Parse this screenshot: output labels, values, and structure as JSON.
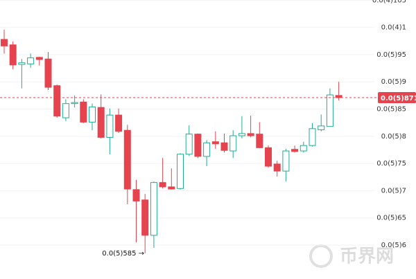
{
  "chart_data": {
    "type": "candlestick",
    "up_color": "#22ab94",
    "down_color": "#e5434e",
    "grid": true,
    "ylim": [
      5.377e-06,
      1.0504e-05
    ],
    "yticks": [
      {
        "value": 6e-06,
        "label": "0.0(5)6"
      },
      {
        "value": 6.5e-06,
        "label": "0.0(5)65"
      },
      {
        "value": 7e-06,
        "label": "0.0(5)7"
      },
      {
        "value": 7.5e-06,
        "label": "0.0(5)75"
      },
      {
        "value": 8e-06,
        "label": "0.0(5)8"
      },
      {
        "value": 8.5e-06,
        "label": "0.0(5)85"
      },
      {
        "value": 9e-06,
        "label": "0.0(5)9"
      },
      {
        "value": 9.5e-06,
        "label": "0.0(5)95"
      },
      {
        "value": 1e-05,
        "label": "0.0(4)1"
      },
      {
        "value": 1.05e-05,
        "label": "0.0(4)105"
      }
    ],
    "open": [
      9.78e-06,
      9.68e-06,
      9.32e-06,
      9.33e-06,
      9.45e-06,
      9.42e-06,
      8.93e-06,
      8.34e-06,
      8.6e-06,
      8.63e-06,
      8.26e-06,
      8.53e-06,
      7.98e-06,
      8.39e-06,
      8.11e-06,
      7.02e-06,
      6.83e-06,
      6.18e-06,
      7.15e-06,
      7.07e-06,
      7.04e-06,
      7.67e-06,
      8.04e-06,
      7.63e-06,
      7.9e-06,
      7.88e-06,
      7.73e-06,
      8.01e-06,
      8.05e-06,
      8.04e-06,
      7.79e-06,
      7.49e-06,
      7.36e-06,
      7.76e-06,
      7.73e-06,
      7.83e-06,
      8.12e-06,
      8.18e-06,
      8.75e-06
    ],
    "high": [
      9.96e-06,
      9.74e-06,
      9.42e-06,
      9.52e-06,
      9.46e-06,
      9.55e-06,
      8.95e-06,
      8.68e-06,
      8.75e-06,
      8.68e-06,
      8.6e-06,
      8.77e-06,
      8.51e-06,
      8.51e-06,
      8.21e-06,
      7.2e-06,
      6.94e-06,
      7.17e-06,
      7.6e-06,
      7.41e-06,
      7.69e-06,
      8.2e-06,
      8.05e-06,
      7.93e-06,
      8.09e-06,
      8.05e-06,
      8.11e-06,
      8.37e-06,
      8.38e-06,
      8.26e-06,
      7.83e-06,
      7.55e-06,
      7.77e-06,
      7.83e-06,
      7.9e-06,
      8.24e-06,
      8.4e-06,
      8.88e-06,
      9e-06
    ],
    "low": [
      9.52e-06,
      9.23e-06,
      8.88e-06,
      9.26e-06,
      9.3e-06,
      8.85e-06,
      8.34e-06,
      8.28e-06,
      8.53e-06,
      8.24e-06,
      8.11e-06,
      7.96e-06,
      7.67e-06,
      8.06e-06,
      6.75e-06,
      6.05e-06,
      5.85e-06,
      5.95e-06,
      7.04e-06,
      7.02e-06,
      7.02e-06,
      7.64e-06,
      7.6e-06,
      7.45e-06,
      7.77e-06,
      7.7e-06,
      7.6e-06,
      7.96e-06,
      7.98e-06,
      7.78e-06,
      7.42e-06,
      7.26e-06,
      7.17e-06,
      7.7e-06,
      7.7e-06,
      7.81e-06,
      8.09e-06,
      8.18e-06,
      8.66e-06
    ],
    "close": [
      9.66e-06,
      9.31e-06,
      9.35e-06,
      9.44e-06,
      9.41e-06,
      8.9e-06,
      8.37e-06,
      8.6e-06,
      8.62e-06,
      8.26e-06,
      8.54e-06,
      7.98e-06,
      8.39e-06,
      8.09e-06,
      7.03e-06,
      6.81e-06,
      6.18e-06,
      7.15e-06,
      7.07e-06,
      7.03e-06,
      7.67e-06,
      8.04e-06,
      7.63e-06,
      7.88e-06,
      7.86e-06,
      7.74e-06,
      8.01e-06,
      8.05e-06,
      8.01e-06,
      7.79e-06,
      7.45e-06,
      7.36e-06,
      7.73e-06,
      7.72e-06,
      7.83e-06,
      8.14e-06,
      8.19e-06,
      8.76e-06,
      8.71e-06
    ],
    "last_price": {
      "value": 8.71e-06,
      "label": "0.0(5)871"
    },
    "low_annotation": {
      "value": 5.85e-06,
      "label": "0.0(5)585 →"
    },
    "watermark": "币界网"
  }
}
